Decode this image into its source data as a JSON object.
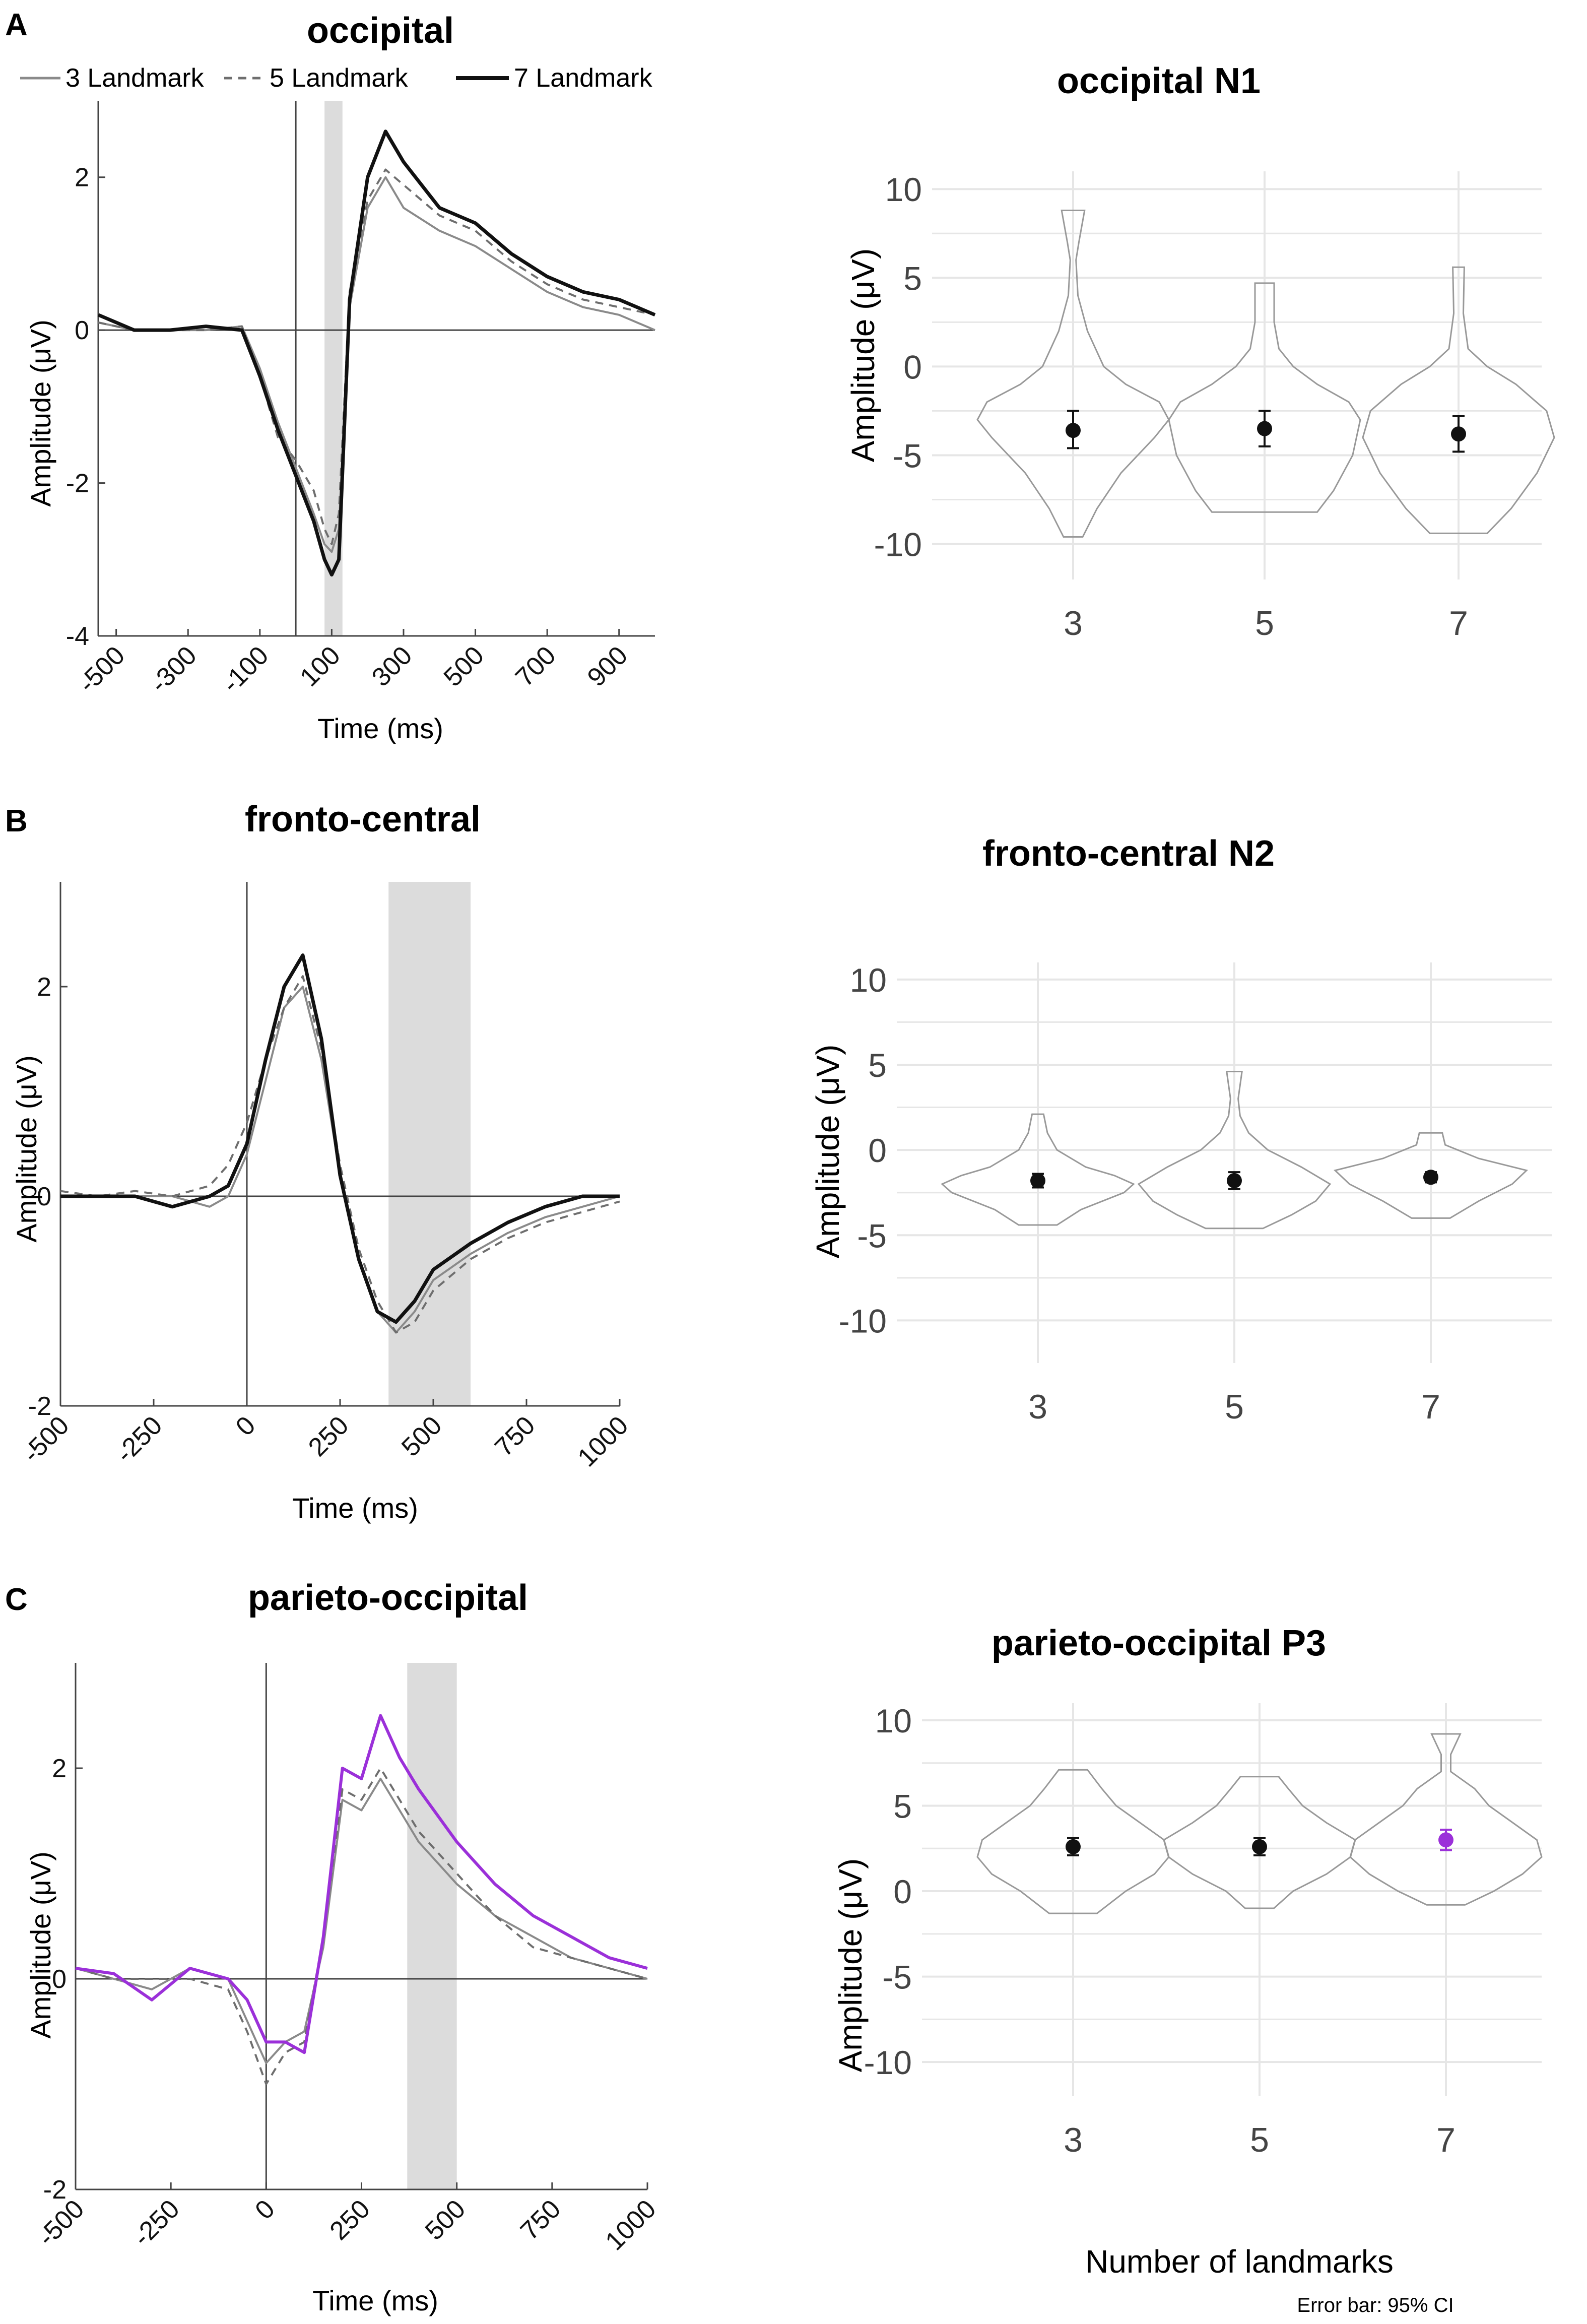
{
  "figure": {
    "note": "Error bar: 95% CI"
  },
  "colors": {
    "axis": "#444444",
    "grid": "#e6e6e6",
    "shade": "#dcdcdc",
    "violin": "#999999",
    "line3": "#8a8a8a",
    "line5": "#6e6e6e",
    "line7": "#111111",
    "highlight": "#9b30d9",
    "text": "#111111"
  },
  "chart_data": [
    {
      "id": "A-erp",
      "panel_label": "A",
      "type": "line",
      "title": "occipital",
      "xlabel": "Time (ms)",
      "ylabel": "Amplitude (μV)",
      "xlim": [
        -550,
        1000
      ],
      "ylim": [
        -4,
        3
      ],
      "xticks": [
        -500,
        -300,
        -100,
        100,
        300,
        500,
        700,
        900
      ],
      "xtick_labels": [
        "-500",
        "-300",
        "-100",
        "100",
        "300",
        "500",
        "700",
        "900"
      ],
      "yticks": [
        -4,
        -2,
        0,
        2
      ],
      "ytick_labels": [
        "-4",
        "-2",
        "0",
        "2"
      ],
      "shade_window": [
        80,
        130
      ],
      "legend": [
        "3 Landmark",
        "5 Landmark",
        "7 Landmark"
      ],
      "series": [
        {
          "name": "3 Landmark",
          "style": "thin",
          "x": [
            -550,
            -450,
            -350,
            -250,
            -150,
            -100,
            -50,
            0,
            50,
            80,
            100,
            120,
            150,
            200,
            250,
            300,
            400,
            500,
            600,
            700,
            800,
            900,
            1000
          ],
          "y": [
            0.1,
            0,
            0,
            0,
            0.05,
            -0.5,
            -1.2,
            -1.8,
            -2.4,
            -2.8,
            -2.9,
            -2.6,
            0.3,
            1.6,
            2.0,
            1.6,
            1.3,
            1.1,
            0.8,
            0.5,
            0.3,
            0.2,
            0
          ]
        },
        {
          "name": "5 Landmark",
          "style": "dashed",
          "x": [
            -550,
            -450,
            -350,
            -250,
            -150,
            -100,
            -50,
            0,
            50,
            80,
            100,
            120,
            150,
            200,
            250,
            300,
            400,
            500,
            600,
            700,
            800,
            900,
            1000
          ],
          "y": [
            0.1,
            0,
            0,
            0,
            0.05,
            -0.6,
            -1.4,
            -1.7,
            -2.1,
            -2.6,
            -2.8,
            -2.4,
            0.5,
            1.7,
            2.1,
            1.9,
            1.5,
            1.3,
            0.9,
            0.6,
            0.4,
            0.3,
            0.2
          ]
        },
        {
          "name": "7 Landmark",
          "style": "thick",
          "x": [
            -550,
            -450,
            -350,
            -250,
            -150,
            -100,
            -50,
            0,
            50,
            80,
            100,
            120,
            150,
            200,
            250,
            300,
            400,
            500,
            600,
            700,
            800,
            900,
            1000
          ],
          "y": [
            0.2,
            0,
            0,
            0.05,
            0,
            -0.6,
            -1.3,
            -1.9,
            -2.5,
            -3.0,
            -3.2,
            -3.0,
            0.4,
            2.0,
            2.6,
            2.2,
            1.6,
            1.4,
            1.0,
            0.7,
            0.5,
            0.4,
            0.2
          ]
        }
      ]
    },
    {
      "id": "A-violin",
      "type": "violin",
      "title": "occipital N1",
      "xlabel": "",
      "ylabel": "Amplitude (μV)",
      "ylim": [
        -12,
        11
      ],
      "categories": [
        "3",
        "5",
        "7"
      ],
      "yticks": [
        10,
        5,
        0,
        -5,
        -10
      ],
      "violins": [
        {
          "category": "3",
          "min": -9.6,
          "max": 8.8,
          "mean": -3.6,
          "ci": [
            -4.6,
            -2.5
          ],
          "profile": [
            [
              -9.6,
              0.1
            ],
            [
              -8,
              0.25
            ],
            [
              -6,
              0.5
            ],
            [
              -4,
              0.85
            ],
            [
              -3,
              1.0
            ],
            [
              -2,
              0.9
            ],
            [
              -1,
              0.55
            ],
            [
              0,
              0.32
            ],
            [
              2,
              0.15
            ],
            [
              4,
              0.05
            ],
            [
              6,
              0.03
            ],
            [
              7,
              0.06
            ],
            [
              8.8,
              0.12
            ]
          ]
        },
        {
          "category": "5",
          "min": -8.2,
          "max": 4.7,
          "mean": -3.5,
          "ci": [
            -4.5,
            -2.5
          ],
          "profile": [
            [
              -8.2,
              0.55
            ],
            [
              -7,
              0.72
            ],
            [
              -5,
              0.92
            ],
            [
              -3,
              1.0
            ],
            [
              -2,
              0.88
            ],
            [
              -1,
              0.55
            ],
            [
              0,
              0.3
            ],
            [
              1,
              0.15
            ],
            [
              2.5,
              0.1
            ],
            [
              4.7,
              0.1
            ]
          ]
        },
        {
          "category": "7",
          "min": -9.4,
          "max": 5.6,
          "mean": -3.8,
          "ci": [
            -4.8,
            -2.8
          ],
          "profile": [
            [
              -9.4,
              0.3
            ],
            [
              -8,
              0.55
            ],
            [
              -6,
              0.82
            ],
            [
              -4,
              1.0
            ],
            [
              -2.5,
              0.92
            ],
            [
              -1,
              0.6
            ],
            [
              0,
              0.3
            ],
            [
              1,
              0.1
            ],
            [
              3,
              0.05
            ],
            [
              5.6,
              0.06
            ]
          ]
        }
      ]
    },
    {
      "id": "B-erp",
      "panel_label": "B",
      "type": "line",
      "title": "fronto-central",
      "xlabel": "Time (ms)",
      "ylabel": "Amplitude (μV)",
      "xlim": [
        -500,
        1000
      ],
      "ylim": [
        -2,
        3
      ],
      "xticks": [
        -500,
        -250,
        0,
        250,
        500,
        750,
        1000
      ],
      "xtick_labels": [
        "-500",
        "-250",
        "0",
        "250",
        "500",
        "750",
        "1000"
      ],
      "yticks": [
        -2,
        0,
        2
      ],
      "ytick_labels": [
        "-2",
        "0",
        "2"
      ],
      "shade_window": [
        380,
        600
      ],
      "series": [
        {
          "name": "3 Landmark",
          "style": "thin",
          "x": [
            -500,
            -400,
            -300,
            -200,
            -100,
            -50,
            0,
            50,
            100,
            150,
            200,
            250,
            300,
            350,
            400,
            450,
            500,
            600,
            700,
            800,
            900,
            1000
          ],
          "y": [
            0,
            0,
            0,
            0,
            -0.1,
            0,
            0.4,
            1.1,
            1.8,
            2.0,
            1.3,
            0.2,
            -0.6,
            -1.1,
            -1.3,
            -1.1,
            -0.8,
            -0.55,
            -0.35,
            -0.2,
            -0.1,
            0
          ]
        },
        {
          "name": "5 Landmark",
          "style": "dashed",
          "x": [
            -500,
            -400,
            -300,
            -200,
            -100,
            -50,
            0,
            50,
            100,
            150,
            200,
            250,
            300,
            350,
            400,
            450,
            500,
            600,
            700,
            800,
            900,
            1000
          ],
          "y": [
            0.05,
            0,
            0.05,
            0,
            0.1,
            0.3,
            0.7,
            1.3,
            1.8,
            2.1,
            1.4,
            0.3,
            -0.5,
            -1.0,
            -1.3,
            -1.2,
            -0.9,
            -0.6,
            -0.4,
            -0.25,
            -0.15,
            -0.05
          ]
        },
        {
          "name": "7 Landmark",
          "style": "thick",
          "x": [
            -500,
            -400,
            -300,
            -200,
            -100,
            -50,
            0,
            50,
            100,
            150,
            200,
            250,
            300,
            350,
            400,
            450,
            500,
            600,
            700,
            800,
            900,
            1000
          ],
          "y": [
            0,
            0,
            0,
            -0.1,
            0,
            0.1,
            0.5,
            1.3,
            2.0,
            2.3,
            1.5,
            0.2,
            -0.6,
            -1.1,
            -1.2,
            -1.0,
            -0.7,
            -0.45,
            -0.25,
            -0.1,
            0,
            0
          ]
        }
      ]
    },
    {
      "id": "B-violin",
      "type": "violin",
      "title": "fronto-central N2",
      "xlabel": "",
      "ylabel": "Amplitude (μV)",
      "ylim": [
        -12.5,
        11
      ],
      "categories": [
        "3",
        "5",
        "7"
      ],
      "yticks": [
        10,
        5,
        0,
        -5,
        -10
      ],
      "violins": [
        {
          "category": "3",
          "min": -4.4,
          "max": 2.1,
          "mean": -1.8,
          "ci": [
            -2.2,
            -1.4
          ],
          "profile": [
            [
              -4.4,
              0.2
            ],
            [
              -3.5,
              0.45
            ],
            [
              -2.5,
              0.9
            ],
            [
              -2,
              1.0
            ],
            [
              -1.5,
              0.8
            ],
            [
              -1,
              0.5
            ],
            [
              0,
              0.2
            ],
            [
              1,
              0.1
            ],
            [
              2.1,
              0.06
            ]
          ]
        },
        {
          "category": "5",
          "min": -4.6,
          "max": 4.6,
          "mean": -1.8,
          "ci": [
            -2.3,
            -1.3
          ],
          "profile": [
            [
              -4.6,
              0.3
            ],
            [
              -3.8,
              0.6
            ],
            [
              -3,
              0.85
            ],
            [
              -2,
              1.0
            ],
            [
              -1,
              0.7
            ],
            [
              0,
              0.35
            ],
            [
              1,
              0.15
            ],
            [
              2,
              0.06
            ],
            [
              3,
              0.04
            ],
            [
              4.6,
              0.08
            ]
          ]
        },
        {
          "category": "7",
          "min": -4.0,
          "max": 1.0,
          "mean": -1.6,
          "ci": [
            -1.9,
            -1.3
          ],
          "profile": [
            [
              -4.0,
              0.2
            ],
            [
              -3,
              0.5
            ],
            [
              -2,
              0.85
            ],
            [
              -1.2,
              1.0
            ],
            [
              -0.5,
              0.5
            ],
            [
              0.3,
              0.15
            ],
            [
              1.0,
              0.12
            ]
          ]
        }
      ]
    },
    {
      "id": "C-erp",
      "panel_label": "C",
      "type": "line",
      "title": "parieto-occipital",
      "xlabel": "Time (ms)",
      "ylabel": "Amplitude (μV)",
      "xlim": [
        -500,
        1000
      ],
      "ylim": [
        -2,
        3
      ],
      "xticks": [
        -500,
        -250,
        0,
        250,
        500,
        750,
        1000
      ],
      "xtick_labels": [
        "-500",
        "-250",
        "0",
        "250",
        "500",
        "750",
        "1000"
      ],
      "yticks": [
        -2,
        0,
        2
      ],
      "ytick_labels": [
        "-2",
        "0",
        "2"
      ],
      "shade_window": [
        370,
        500
      ],
      "series": [
        {
          "name": "3 Landmark",
          "style": "thin",
          "x": [
            -500,
            -400,
            -300,
            -200,
            -100,
            -50,
            0,
            50,
            100,
            150,
            200,
            250,
            300,
            350,
            400,
            500,
            600,
            700,
            800,
            900,
            1000
          ],
          "y": [
            0.1,
            0,
            -0.1,
            0.1,
            0,
            -0.4,
            -0.8,
            -0.6,
            -0.5,
            0.3,
            1.7,
            1.6,
            1.9,
            1.6,
            1.3,
            0.9,
            0.6,
            0.4,
            0.2,
            0.1,
            0
          ]
        },
        {
          "name": "5 Landmark",
          "style": "dashed",
          "x": [
            -500,
            -400,
            -300,
            -200,
            -100,
            -50,
            0,
            50,
            100,
            150,
            200,
            250,
            300,
            350,
            400,
            500,
            600,
            700,
            800,
            900,
            1000
          ],
          "y": [
            0.1,
            0,
            0,
            0,
            -0.1,
            -0.5,
            -1.0,
            -0.7,
            -0.6,
            0.4,
            1.8,
            1.7,
            2.0,
            1.7,
            1.4,
            1.0,
            0.6,
            0.3,
            0.2,
            0.1,
            0
          ]
        },
        {
          "name": "7 Landmark",
          "style": "highlight",
          "x": [
            -500,
            -400,
            -300,
            -200,
            -100,
            -50,
            0,
            50,
            100,
            150,
            200,
            250,
            300,
            350,
            400,
            500,
            600,
            700,
            800,
            900,
            1000
          ],
          "y": [
            0.1,
            0.05,
            -0.2,
            0.1,
            0,
            -0.2,
            -0.6,
            -0.6,
            -0.7,
            0.4,
            2.0,
            1.9,
            2.5,
            2.1,
            1.8,
            1.3,
            0.9,
            0.6,
            0.4,
            0.2,
            0.1
          ]
        }
      ]
    },
    {
      "id": "C-violin",
      "type": "violin",
      "title": "parieto-occipital P3",
      "xlabel": "Number of landmarks",
      "ylabel": "Amplitude (μV)",
      "ylim": [
        -12,
        11
      ],
      "categories": [
        "3",
        "5",
        "7"
      ],
      "yticks": [
        10,
        5,
        0,
        -5,
        -10
      ],
      "violins": [
        {
          "category": "3",
          "min": -1.3,
          "max": 7.1,
          "mean": 2.6,
          "ci": [
            2.1,
            3.1
          ],
          "profile": [
            [
              -1.3,
              0.25
            ],
            [
              0,
              0.55
            ],
            [
              1,
              0.85
            ],
            [
              2,
              1.0
            ],
            [
              3,
              0.95
            ],
            [
              4,
              0.7
            ],
            [
              5,
              0.45
            ],
            [
              6,
              0.3
            ],
            [
              7.1,
              0.15
            ]
          ]
        },
        {
          "category": "5",
          "min": -1.0,
          "max": 6.7,
          "mean": 2.6,
          "ci": [
            2.1,
            3.1
          ],
          "profile": [
            [
              -1.0,
              0.15
            ],
            [
              0,
              0.35
            ],
            [
              1,
              0.7
            ],
            [
              2,
              0.95
            ],
            [
              3,
              1.0
            ],
            [
              4,
              0.7
            ],
            [
              5,
              0.45
            ],
            [
              6,
              0.3
            ],
            [
              6.7,
              0.2
            ]
          ]
        },
        {
          "category": "7",
          "min": -0.8,
          "max": 9.2,
          "mean": 3.0,
          "ci": [
            2.4,
            3.6
          ],
          "highlight": true,
          "profile": [
            [
              -0.8,
              0.2
            ],
            [
              0,
              0.5
            ],
            [
              1,
              0.8
            ],
            [
              2,
              1.0
            ],
            [
              3,
              0.95
            ],
            [
              4,
              0.7
            ],
            [
              5,
              0.45
            ],
            [
              6,
              0.3
            ],
            [
              7,
              0.05
            ],
            [
              8,
              0.05
            ],
            [
              9.2,
              0.15
            ]
          ]
        }
      ]
    }
  ]
}
